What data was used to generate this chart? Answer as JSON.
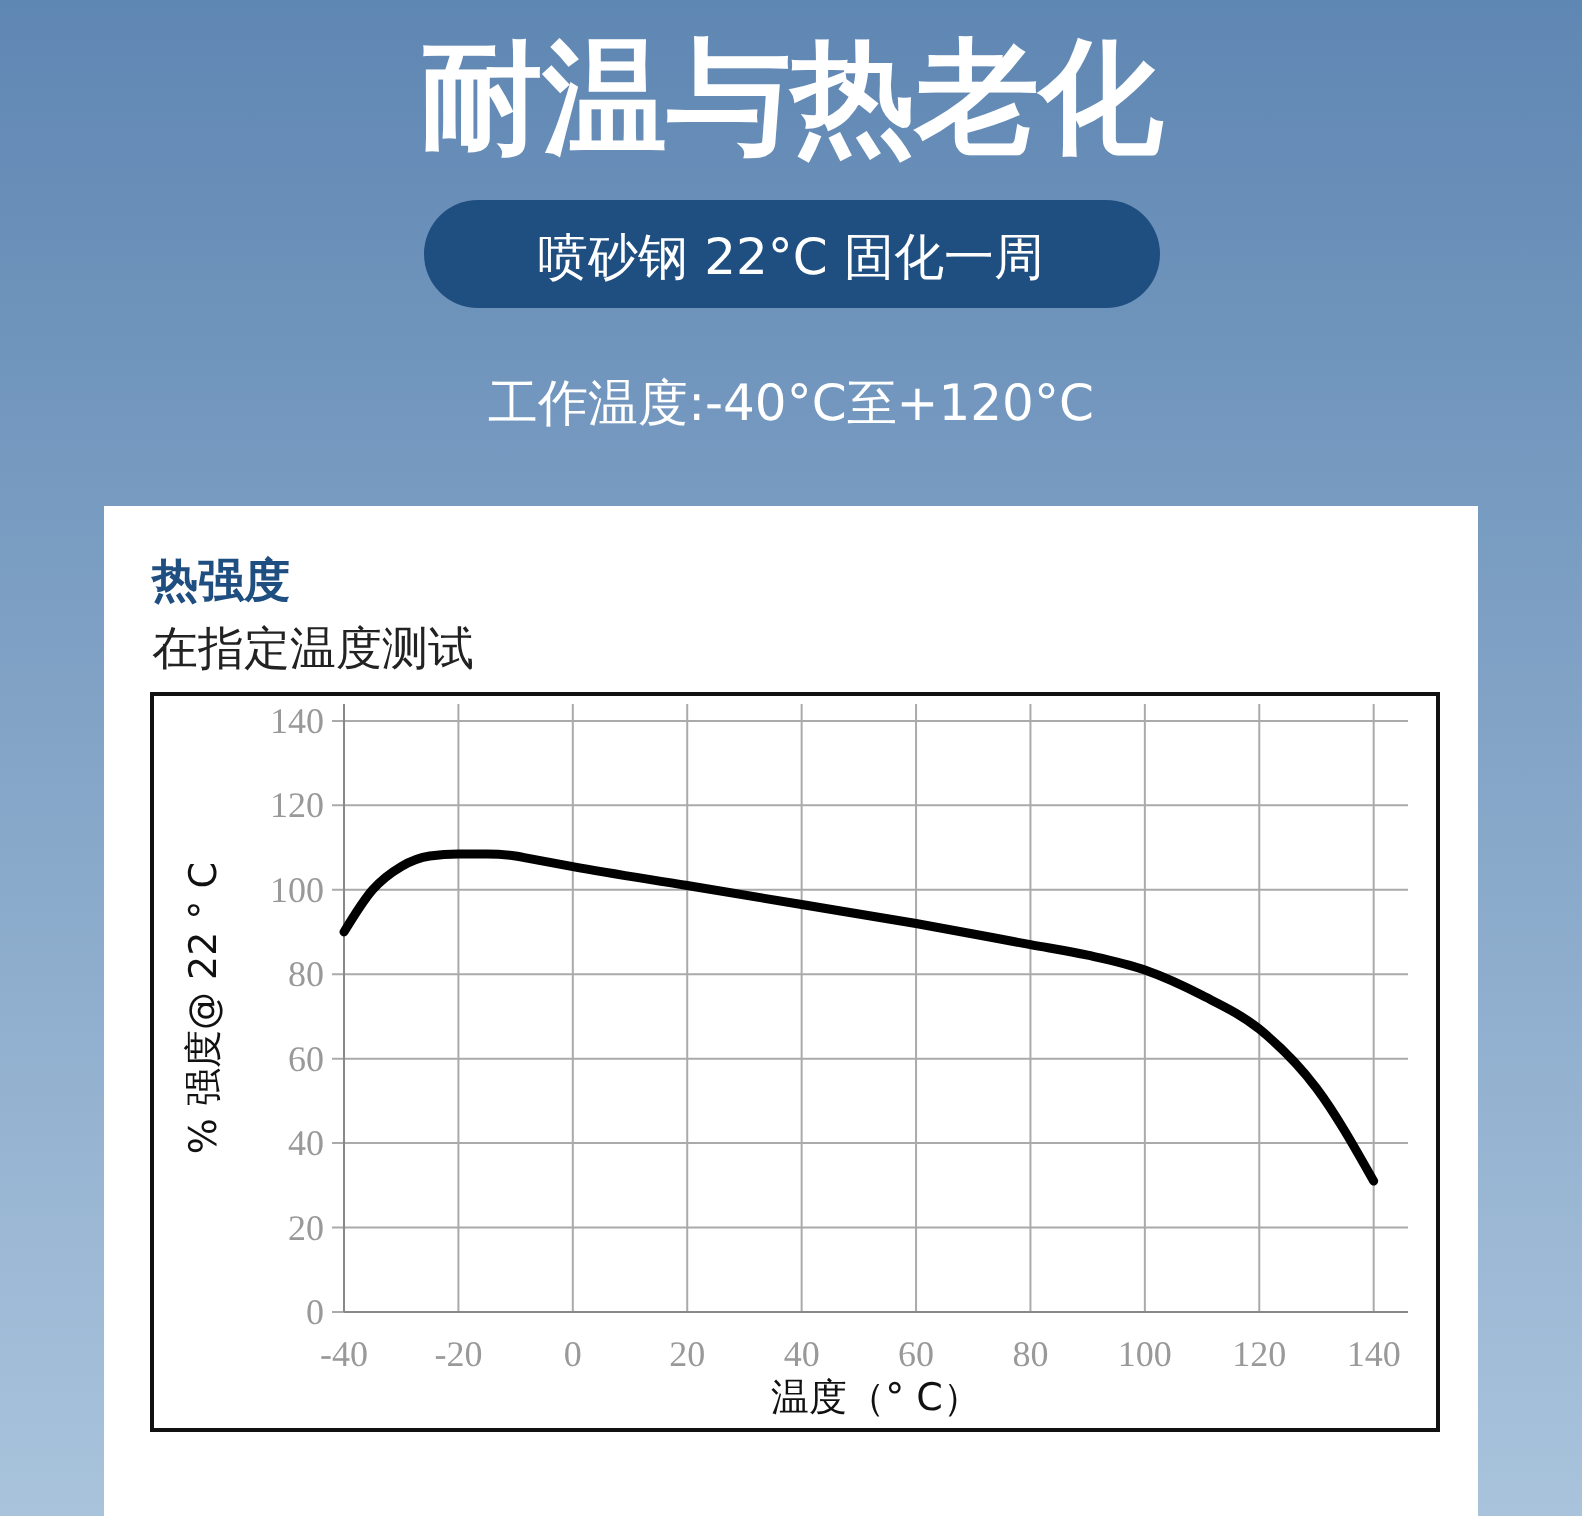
{
  "chart_data": {
    "type": "line",
    "title": "耐温与热老化",
    "subtitle": "喷砂钢 22°C 固化一周",
    "annotations": [
      "工作温度:-40°C至+120°C",
      "热强度",
      "在指定温度测试"
    ],
    "xlabel": "温度（° C）",
    "ylabel": "% 强度@ 22 ° C",
    "series": [
      {
        "color": "#000000",
        "x": [
          -40,
          -35,
          -30,
          -25,
          -20,
          -15,
          -10,
          -8,
          0,
          20,
          40,
          60,
          80,
          90,
          100,
          110,
          120,
          130,
          140
        ],
        "values": [
          90,
          100,
          105.5,
          108,
          108.5,
          108.5,
          108,
          107.5,
          105.5,
          101,
          96.5,
          92,
          87,
          84.5,
          81,
          75,
          67,
          53,
          31
        ]
      }
    ],
    "xlim": [
      -40,
      146
    ],
    "ylim": [
      0,
      144
    ],
    "xticks": [
      -40,
      -20,
      0,
      20,
      40,
      60,
      80,
      100,
      120,
      140
    ],
    "yticks": [
      0,
      20,
      40,
      60,
      80,
      100,
      120,
      140
    ],
    "grid": true,
    "marker": "none",
    "line_style": "solid"
  }
}
